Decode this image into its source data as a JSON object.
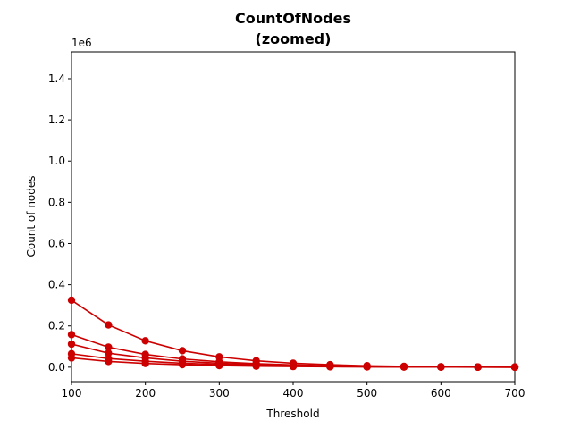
{
  "chart_data": {
    "type": "line",
    "title": "CountOfNodes",
    "subtitle": "(zoomed)",
    "xlabel": "Threshold",
    "ylabel": "Count of nodes",
    "y_scale_label": "1e6",
    "xlim": [
      100,
      700
    ],
    "ylim": [
      -70000,
      1530000
    ],
    "x_ticks": [
      100,
      200,
      300,
      400,
      500,
      600,
      700
    ],
    "x_tick_labels": [
      "100",
      "200",
      "300",
      "400",
      "500",
      "600",
      "700"
    ],
    "y_ticks": [
      0,
      200000,
      400000,
      600000,
      800000,
      1000000,
      1200000,
      1400000
    ],
    "y_tick_labels": [
      "0.0",
      "0.2",
      "0.4",
      "0.6",
      "0.8",
      "1.0",
      "1.2",
      "1.4"
    ],
    "grid": false,
    "legend": "none",
    "color": "#cc0000",
    "x": [
      100,
      150,
      200,
      250,
      300,
      350,
      400,
      450,
      500,
      550,
      600,
      650,
      700
    ],
    "series": [
      {
        "values": [
          325000,
          205000,
          128000,
          80000,
          50000,
          31000,
          19000,
          12000,
          7000,
          4000,
          2000,
          1000,
          500
        ]
      },
      {
        "values": [
          158000,
          97000,
          62000,
          40000,
          26000,
          17000,
          11000,
          7000,
          4000,
          2500,
          1500,
          800,
          400
        ]
      },
      {
        "values": [
          112000,
          68000,
          45000,
          29000,
          19000,
          12000,
          8000,
          5000,
          3000,
          2000,
          1000,
          600,
          300
        ]
      },
      {
        "values": [
          65000,
          42000,
          29000,
          19000,
          13000,
          8500,
          5500,
          3500,
          2200,
          1400,
          900,
          500,
          250
        ]
      },
      {
        "values": [
          45000,
          28000,
          18000,
          12000,
          8000,
          5200,
          3300,
          2100,
          1300,
          800,
          500,
          300,
          150
        ]
      }
    ]
  }
}
